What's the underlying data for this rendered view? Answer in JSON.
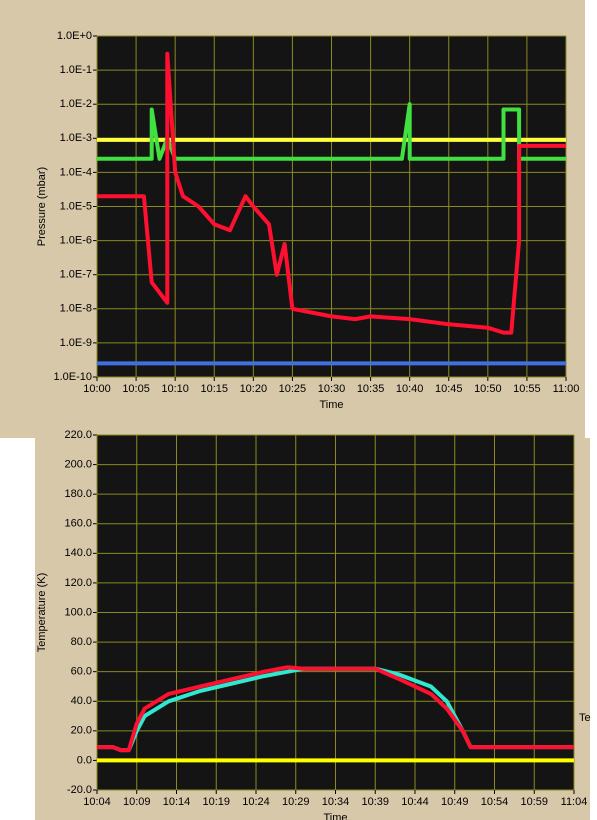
{
  "chart_data": [
    {
      "type": "line",
      "y_label": "Pressure (mbar)",
      "x_label": "Time",
      "log_scale": true,
      "grid": true,
      "xlim": [
        "10:00",
        "11:00"
      ],
      "xticks": [
        "10:00",
        "10:05",
        "10:10",
        "10:15",
        "10:20",
        "10:25",
        "10:30",
        "10:35",
        "10:40",
        "10:45",
        "10:50",
        "10:55",
        "11:00"
      ],
      "ylim": [
        1e-10,
        1
      ],
      "yticks": [
        {
          "value": 1,
          "label": "1.0E+0"
        },
        {
          "value": 0.1,
          "label": "1.0E-1"
        },
        {
          "value": 0.01,
          "label": "1.0E-2"
        },
        {
          "value": 0.001,
          "label": "1.0E-3"
        },
        {
          "value": 0.0001,
          "label": "1.0E-4"
        },
        {
          "value": 1e-05,
          "label": "1.0E-5"
        },
        {
          "value": 1e-06,
          "label": "1.0E-6"
        },
        {
          "value": 1e-07,
          "label": "1.0E-7"
        },
        {
          "value": 1e-08,
          "label": "1.0E-8"
        },
        {
          "value": 1e-09,
          "label": "1.0E-9"
        },
        {
          "value": 1e-10,
          "label": "1.0E-10"
        }
      ],
      "series": [
        {
          "color": "#ffff40",
          "x": [
            "10:00",
            "11:00"
          ],
          "values": [
            0.0009,
            0.0009
          ]
        },
        {
          "color": "#4070e0",
          "x": [
            "10:00",
            "11:00"
          ],
          "values": [
            2.5e-10,
            2.5e-10
          ]
        },
        {
          "color": "#40e040",
          "x": [
            "10:00",
            "10:07",
            "10:07",
            "10:08",
            "10:09",
            "10:10",
            "10:30",
            "10:39",
            "10:40",
            "10:40",
            "10:52",
            "10:52",
            "10:54",
            "10:54",
            "11:00"
          ],
          "values": [
            0.00025,
            0.00025,
            0.007,
            0.00025,
            0.001,
            0.00025,
            0.00025,
            0.00025,
            0.01,
            0.00025,
            0.00025,
            0.007,
            0.007,
            0.00025,
            0.00025
          ]
        },
        {
          "color": "#ff1030",
          "x": [
            "10:00",
            "10:03",
            "10:06",
            "10:07",
            "10:09",
            "10:09",
            "10:10",
            "10:11",
            "10:13",
            "10:15",
            "10:17",
            "10:19",
            "10:20",
            "10:22",
            "10:23",
            "10:24",
            "10:25",
            "10:30",
            "10:33",
            "10:35",
            "10:40",
            "10:45",
            "10:50",
            "10:52",
            "10:53",
            "10:54",
            "10:54",
            "11:00"
          ],
          "values": [
            2e-05,
            2e-05,
            2e-05,
            6e-08,
            1.5e-08,
            0.3,
            0.0001,
            2e-05,
            1e-05,
            3e-06,
            2e-06,
            2e-05,
            1e-05,
            3e-06,
            1e-07,
            8e-07,
            1e-08,
            6e-09,
            5e-09,
            6e-09,
            5e-09,
            3.5e-09,
            2.8e-09,
            2e-09,
            2e-09,
            1e-06,
            0.0006,
            0.0006
          ]
        }
      ]
    },
    {
      "type": "line",
      "y_label": "Temperature (K)",
      "x_label": "Time",
      "annotation": "Te",
      "log_scale": false,
      "grid": true,
      "xlim": [
        "10:04",
        "11:04"
      ],
      "xticks": [
        "10:04",
        "10:09",
        "10:14",
        "10:19",
        "10:24",
        "10:29",
        "10:34",
        "10:39",
        "10:44",
        "10:49",
        "10:54",
        "10:59",
        "11:04"
      ],
      "ylim": [
        -20,
        220
      ],
      "yticks": [
        {
          "value": 220,
          "label": "220.0"
        },
        {
          "value": 200,
          "label": "200.0"
        },
        {
          "value": 180,
          "label": "180.0"
        },
        {
          "value": 160,
          "label": "160.0"
        },
        {
          "value": 140,
          "label": "140.0"
        },
        {
          "value": 120,
          "label": "120.0"
        },
        {
          "value": 100,
          "label": "100.0"
        },
        {
          "value": 80,
          "label": "80.0"
        },
        {
          "value": 60,
          "label": "60.0"
        },
        {
          "value": 40,
          "label": "40.0"
        },
        {
          "value": 20,
          "label": "20.0"
        },
        {
          "value": 0,
          "label": "0.0"
        },
        {
          "value": -20,
          "label": "-20.0"
        }
      ],
      "series": [
        {
          "color": "#ffff00",
          "x": [
            "10:04",
            "11:04"
          ],
          "values": [
            0,
            0
          ]
        },
        {
          "color": "#30e8d0",
          "x": [
            "10:04",
            "10:06",
            "10:07",
            "10:08",
            "10:09",
            "10:10",
            "10:13",
            "10:17",
            "10:21",
            "10:25",
            "10:28",
            "10:30",
            "10:39",
            "10:42",
            "10:46",
            "10:48",
            "10:50",
            "10:51",
            "11:04"
          ],
          "values": [
            9,
            9,
            7,
            7,
            20,
            30,
            40,
            47,
            52,
            57,
            60,
            62,
            62,
            58,
            50,
            40,
            20,
            9,
            9
          ]
        },
        {
          "color": "#ff1030",
          "x": [
            "10:04",
            "10:06",
            "10:07",
            "10:08",
            "10:09",
            "10:10",
            "10:13",
            "10:17",
            "10:21",
            "10:25",
            "10:28",
            "10:30",
            "10:39",
            "10:42",
            "10:46",
            "10:48",
            "10:50",
            "10:51",
            "11:04"
          ],
          "values": [
            9,
            9,
            7,
            7,
            25,
            35,
            45,
            50,
            55,
            60,
            63,
            62,
            62,
            55,
            45,
            35,
            20,
            9,
            9
          ]
        }
      ]
    }
  ]
}
